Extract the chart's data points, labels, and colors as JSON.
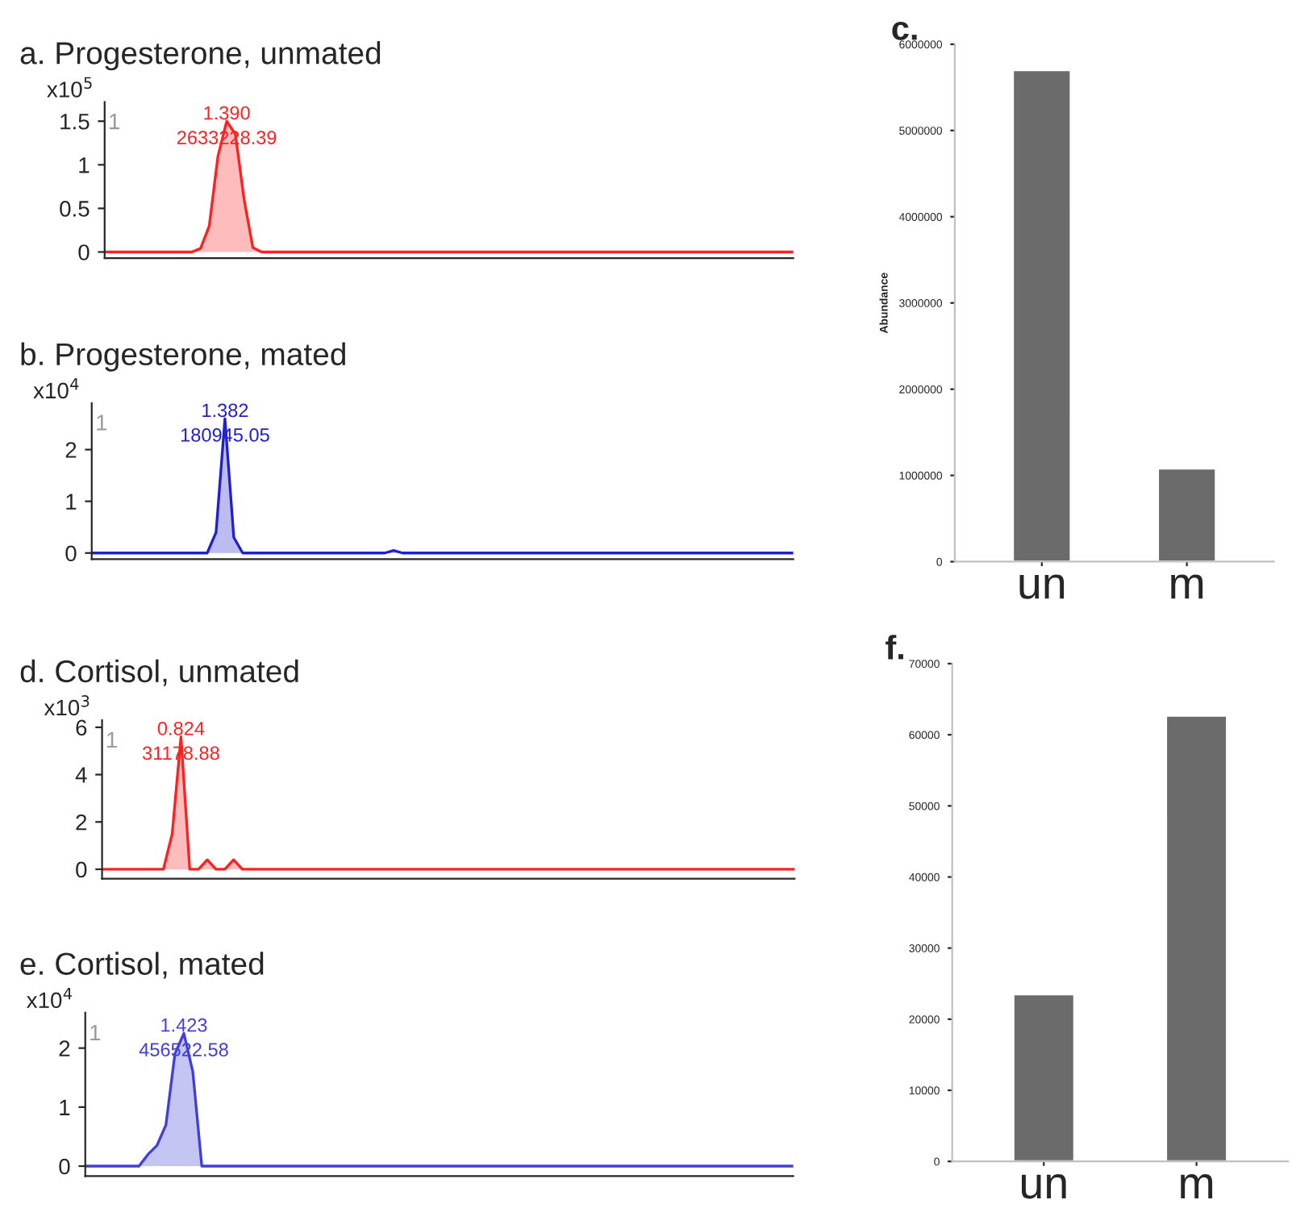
{
  "chart_data": [
    {
      "type": "area",
      "title": "a. Progesterone, unmated",
      "ylabel": "x10$^{5}$",
      "color": "#ff2020",
      "categories": [
        null,
        null,
        null,
        null,
        null,
        null,
        null,
        null,
        null,
        null,
        null,
        null,
        null,
        null,
        null,
        null,
        null,
        null,
        null,
        null,
        null,
        null,
        null,
        null,
        null,
        null,
        null,
        null,
        null,
        null,
        null,
        null,
        null,
        null,
        null,
        null,
        null,
        null,
        null,
        null,
        null,
        null,
        null,
        null,
        null,
        null,
        null,
        null,
        null,
        null,
        null,
        null,
        null,
        null,
        null,
        null,
        null,
        null,
        null,
        null,
        null,
        null,
        null,
        null,
        null,
        null,
        null,
        null,
        null,
        null,
        null,
        null,
        null,
        null,
        null,
        null,
        null,
        null,
        null,
        null
      ],
      "values": [
        0,
        0,
        0,
        0,
        0,
        0,
        0,
        0,
        0,
        0,
        0,
        0.04,
        0.3,
        1.1,
        1.5,
        1.35,
        0.6,
        0.05,
        0,
        0,
        0,
        0,
        0,
        0,
        0,
        0,
        0,
        0,
        0,
        0,
        0,
        0,
        0,
        0,
        0,
        0,
        0,
        0,
        0,
        0,
        0,
        0,
        0,
        0,
        0,
        0,
        0,
        0,
        0,
        0,
        0,
        0,
        0,
        0,
        0,
        0,
        0,
        0,
        0,
        0,
        0,
        0,
        0,
        0,
        0,
        0,
        0,
        0,
        0,
        0,
        0,
        0,
        0,
        0,
        0,
        0,
        0,
        0,
        0,
        0
      ],
      "ylim": [
        -0.07,
        1.72
      ],
      "yticks": [
        0,
        0.5,
        1,
        1.5
      ],
      "annotations": [
        "1",
        "1.390",
        "2633228.39"
      ]
    },
    {
      "type": "area",
      "title": "b. Progesterone, mated",
      "ylabel": "x10$^{4}$",
      "color": "#2020d0",
      "categories": [
        null,
        null,
        null,
        null,
        null,
        null,
        null,
        null,
        null,
        null,
        null,
        null,
        null,
        null,
        null,
        null,
        null,
        null,
        null,
        null,
        null,
        null,
        null,
        null,
        null,
        null,
        null,
        null,
        null,
        null,
        null,
        null,
        null,
        null,
        null,
        null,
        null,
        null,
        null,
        null,
        null,
        null,
        null,
        null,
        null,
        null,
        null,
        null,
        null,
        null,
        null,
        null,
        null,
        null,
        null,
        null,
        null,
        null,
        null,
        null,
        null,
        null,
        null,
        null,
        null,
        null,
        null,
        null,
        null,
        null,
        null,
        null,
        null,
        null,
        null,
        null,
        null,
        null,
        null,
        null
      ],
      "values": [
        0,
        0,
        0,
        0,
        0,
        0,
        0,
        0,
        0,
        0,
        0,
        0,
        0,
        0,
        0.4,
        2.6,
        0.3,
        0,
        0,
        0,
        0,
        0,
        0,
        0,
        0,
        0,
        0,
        0,
        0,
        0,
        0,
        0,
        0,
        0,
        0.05,
        0,
        0,
        0,
        0,
        0,
        0,
        0,
        0,
        0,
        0,
        0,
        0,
        0,
        0,
        0,
        0,
        0,
        0,
        0,
        0,
        0,
        0,
        0,
        0,
        0,
        0,
        0,
        0,
        0,
        0,
        0,
        0,
        0,
        0,
        0,
        0,
        0,
        0,
        0,
        0,
        0,
        0,
        0,
        0,
        0
      ],
      "ylim": [
        -0.12,
        2.9
      ],
      "yticks": [
        0,
        1,
        2
      ],
      "annotations": [
        "1",
        "1.382",
        "180945.05"
      ]
    },
    {
      "type": "bar",
      "title": "c.",
      "ylabel": "Abundance",
      "color": "#6b6b6b",
      "categories": [
        "un",
        "m"
      ],
      "values": [
        5700000,
        1080000
      ],
      "ylim": [
        0,
        6000000
      ],
      "yticks": [
        0,
        1000000,
        2000000,
        3000000,
        4000000,
        5000000,
        6000000
      ]
    },
    {
      "type": "area",
      "title": "d. Cortisol, unmated",
      "ylabel": "x10$^{3}$",
      "color": "#ff2020",
      "categories": [
        null,
        null,
        null,
        null,
        null,
        null,
        null,
        null,
        null,
        null,
        null,
        null,
        null,
        null,
        null,
        null,
        null,
        null,
        null,
        null,
        null,
        null,
        null,
        null,
        null,
        null,
        null,
        null,
        null,
        null,
        null,
        null,
        null,
        null,
        null,
        null,
        null,
        null,
        null,
        null,
        null,
        null,
        null,
        null,
        null,
        null,
        null,
        null,
        null,
        null,
        null,
        null,
        null,
        null,
        null,
        null,
        null,
        null,
        null,
        null,
        null,
        null,
        null,
        null,
        null,
        null,
        null,
        null,
        null,
        null,
        null,
        null,
        null,
        null,
        null,
        null,
        null,
        null,
        null,
        null
      ],
      "values": [
        0,
        0,
        0,
        0,
        0,
        0,
        0,
        0,
        1.5,
        5.6,
        0,
        0,
        0.4,
        0,
        0,
        0.4,
        0,
        0,
        0,
        0,
        0,
        0,
        0,
        0,
        0,
        0,
        0,
        0,
        0,
        0,
        0,
        0,
        0,
        0,
        0,
        0,
        0,
        0,
        0,
        0,
        0,
        0,
        0,
        0,
        0,
        0,
        0,
        0,
        0,
        0,
        0,
        0,
        0,
        0,
        0,
        0,
        0,
        0,
        0,
        0,
        0,
        0,
        0,
        0,
        0,
        0,
        0,
        0,
        0,
        0,
        0,
        0,
        0,
        0,
        0,
        0,
        0,
        0,
        0,
        0
      ],
      "ylim": [
        -0.4,
        6.3
      ],
      "yticks": [
        0,
        2,
        4,
        6
      ],
      "annotations": [
        "1",
        "0.824",
        "31178.88"
      ]
    },
    {
      "type": "area",
      "title": "e. Cortisol, mated",
      "ylabel": "x10$^{4}$",
      "color": "#4040d8",
      "categories": [
        null,
        null,
        null,
        null,
        null,
        null,
        null,
        null,
        null,
        null,
        null,
        null,
        null,
        null,
        null,
        null,
        null,
        null,
        null,
        null,
        null,
        null,
        null,
        null,
        null,
        null,
        null,
        null,
        null,
        null,
        null,
        null,
        null,
        null,
        null,
        null,
        null,
        null,
        null,
        null,
        null,
        null,
        null,
        null,
        null,
        null,
        null,
        null,
        null,
        null,
        null,
        null,
        null,
        null,
        null,
        null,
        null,
        null,
        null,
        null,
        null,
        null,
        null,
        null,
        null,
        null,
        null,
        null,
        null,
        null,
        null,
        null,
        null,
        null,
        null,
        null,
        null,
        null,
        null,
        null
      ],
      "values": [
        0,
        0,
        0,
        0,
        0,
        0,
        0,
        0.2,
        0.35,
        0.7,
        1.9,
        2.25,
        1.6,
        0,
        0,
        0,
        0,
        0,
        0,
        0,
        0,
        0,
        0,
        0,
        0,
        0,
        0,
        0,
        0,
        0,
        0,
        0,
        0,
        0,
        0,
        0,
        0,
        0,
        0,
        0,
        0,
        0,
        0,
        0,
        0,
        0,
        0,
        0,
        0,
        0,
        0,
        0,
        0,
        0,
        0,
        0,
        0,
        0,
        0,
        0,
        0,
        0,
        0,
        0,
        0,
        0,
        0,
        0,
        0,
        0,
        0,
        0,
        0,
        0,
        0,
        0,
        0,
        0,
        0,
        0
      ],
      "ylim": [
        -0.17,
        2.6
      ],
      "yticks": [
        0,
        1,
        2
      ],
      "annotations": [
        "1",
        "1.423",
        "456522.58"
      ]
    },
    {
      "type": "bar",
      "title": "f.",
      "color": "#6b6b6b",
      "categories": [
        "un",
        "m"
      ],
      "values": [
        23500,
        62700
      ],
      "ylim": [
        0,
        70000
      ],
      "yticks": [
        0,
        10000,
        20000,
        30000,
        40000,
        50000,
        60000,
        70000
      ]
    }
  ]
}
